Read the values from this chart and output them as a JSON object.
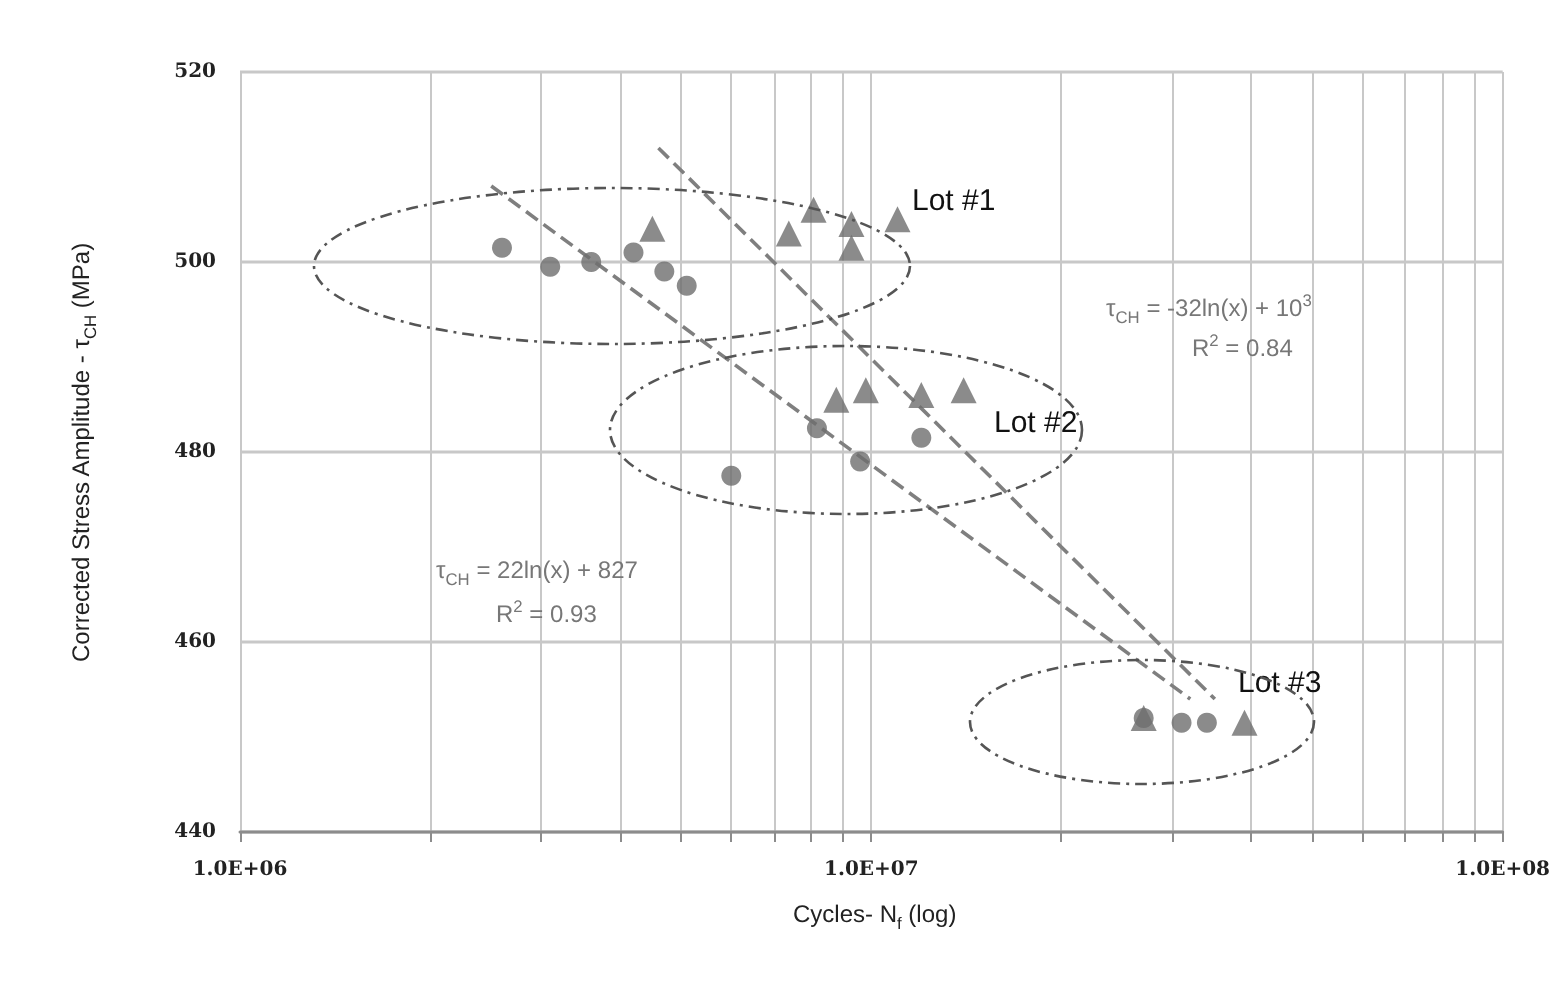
{
  "chart_data": {
    "type": "scatter",
    "xlabel": "Cycles- N$_{f}$ (log)",
    "ylabel": "Corrected Stress Amplitude - τ$_{CH}$ (MPa)",
    "log": "x",
    "xlim": [
      1000000,
      100000000
    ],
    "xticks": [
      {
        "value": 1000000,
        "label": "1.0E+06"
      },
      {
        "value": 2000000,
        "label": null
      },
      {
        "value": 3000000,
        "label": null
      },
      {
        "value": 4000000,
        "label": null
      },
      {
        "value": 5000000,
        "label": null
      },
      {
        "value": 6000000,
        "label": null
      },
      {
        "value": 7000000,
        "label": null
      },
      {
        "value": 8000000,
        "label": null
      },
      {
        "value": 9000000,
        "label": null
      },
      {
        "value": 10000000,
        "label": "1.0E+07"
      },
      {
        "value": 20000000,
        "label": null
      },
      {
        "value": 30000000,
        "label": null
      },
      {
        "value": 40000000,
        "label": null
      },
      {
        "value": 50000000,
        "label": null
      },
      {
        "value": 60000000,
        "label": null
      },
      {
        "value": 70000000,
        "label": null
      },
      {
        "value": 80000000,
        "label": null
      },
      {
        "value": 90000000,
        "label": null
      },
      {
        "value": 100000000,
        "label": "1.0E+08"
      }
    ],
    "ylim": [
      440,
      520
    ],
    "yticks": [
      440,
      460,
      480,
      500,
      520
    ],
    "grid": true,
    "series": [
      {
        "type": "scatter",
        "marker": "circle",
        "color": "#6e6e6e",
        "x": [
          2600000,
          3100000,
          3600000,
          4200000,
          4700000,
          5100000,
          6000000,
          8200000,
          9600000,
          12000000,
          27000000,
          31000000,
          34000000
        ],
        "values": [
          501.5,
          499.5,
          500,
          501,
          499,
          497.5,
          477.5,
          482.5,
          479,
          481.5,
          452,
          451.5,
          451.5
        ]
      },
      {
        "type": "scatter",
        "marker": "triangle",
        "color": "#6e6e6e",
        "x": [
          4500000,
          7400000,
          8100000,
          9300000,
          9300000,
          11000000,
          8800000,
          9800000,
          12000000,
          14000000,
          27000000,
          39000000
        ],
        "values": [
          503.5,
          503,
          505.5,
          504,
          501.5,
          504.5,
          485.5,
          486.5,
          486,
          486.5,
          452,
          451.5
        ]
      },
      {
        "type": "line",
        "marker": "none",
        "line_style": "dashed",
        "color": "#7f7f7f",
        "x": [
          2500000,
          32000000
        ],
        "values": [
          508,
          454
        ]
      },
      {
        "type": "line",
        "marker": "none",
        "line_style": "dashed",
        "color": "#7f7f7f",
        "x": [
          4600000,
          35000000
        ],
        "values": [
          512,
          454
        ]
      }
    ],
    "annotations": [
      "Lot #1",
      "Lot #2",
      "Lot #3",
      "τ$_{CH}$ = 22ln(x) + 827",
      "R$^{2}$ = 0.93",
      "τ$_{CH}$ = -32ln(x) + 10$^{3}$",
      "R$^{2}$ = 0.84"
    ]
  }
}
